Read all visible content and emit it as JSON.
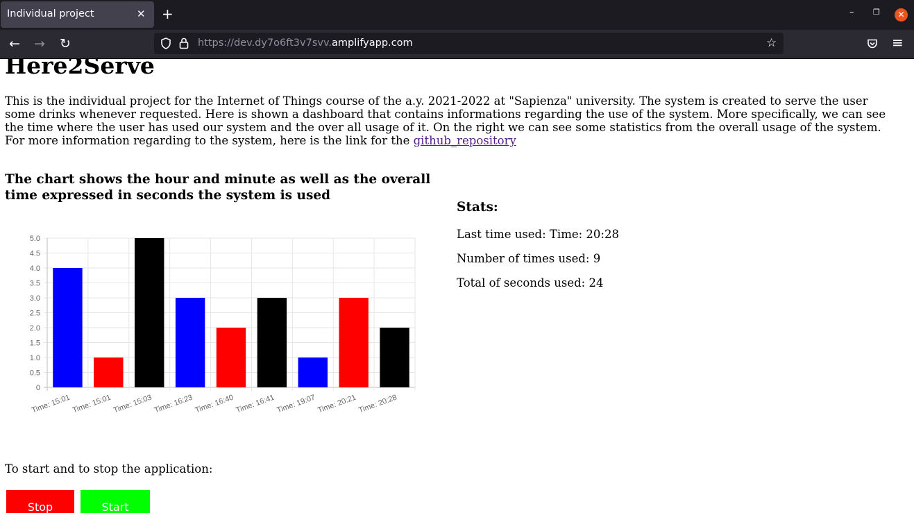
{
  "browser": {
    "tab_title": "Individual project",
    "tab_close": "✕",
    "new_tab": "+",
    "url_prefix": "https://dev.dy7o6ft3v7svv.",
    "url_host": "amplifyapp.com",
    "back_glyph": "←",
    "forward_glyph": "→",
    "reload_glyph": "↻",
    "star_glyph": "☆",
    "menu_glyph": "≡",
    "minimize_glyph": "–",
    "maximize_glyph": "❐",
    "close_glyph": "✕"
  },
  "page": {
    "title": "Here2Serve",
    "intro_text": "This is the individual project for the Internet of Things course of the a.y. 2021-2022 at \"Sapienza\" university. The system is created to serve the user some drinks whenever requested. Here is shown a dashboard that contains informations regarding the use of the system. More specifically, we can see the time where the user has used our system and the over all usage of it. On the right we can see some statistics from the overall usage of the system. For more information regarding to the system, here is the link for the ",
    "link_text": "github_repository",
    "chart_heading": "The chart shows the hour and minute as well as the overall time expressed in seconds the system is used",
    "control_text": "To start and to stop the application:"
  },
  "stats": {
    "heading": "Stats:",
    "last_used": "Last time used: Time: 20:28",
    "times_used": "Number of times used: 9",
    "total_seconds": "Total of seconds used: 24"
  },
  "buttons": {
    "stop": "Stop",
    "start": "Start"
  },
  "colors": {
    "stop_button": "#ff0000",
    "start_button": "#00ff00",
    "link": "#551a8b"
  },
  "chart_data": {
    "type": "bar",
    "categories": [
      "Time: 15:01",
      "Time: 15:01",
      "Time: 15:03",
      "Time: 16:23",
      "Time: 16:40",
      "Time: 16:41",
      "Time: 19:07",
      "Time: 20:21",
      "Time: 20:28"
    ],
    "values": [
      4,
      1,
      5,
      3,
      2,
      3,
      1,
      3,
      2
    ],
    "colors": [
      "#0000ff",
      "#ff0000",
      "#000000",
      "#0000ff",
      "#ff0000",
      "#000000",
      "#0000ff",
      "#ff0000",
      "#000000"
    ],
    "ylim": [
      0,
      5
    ],
    "yticks": [
      "5.0",
      "4.5",
      "4.0",
      "3.5",
      "3.0",
      "2.5",
      "2.0",
      "1.5",
      "1.0",
      "0.5",
      "0"
    ],
    "grid": true,
    "title": "",
    "xlabel": "",
    "ylabel": ""
  }
}
